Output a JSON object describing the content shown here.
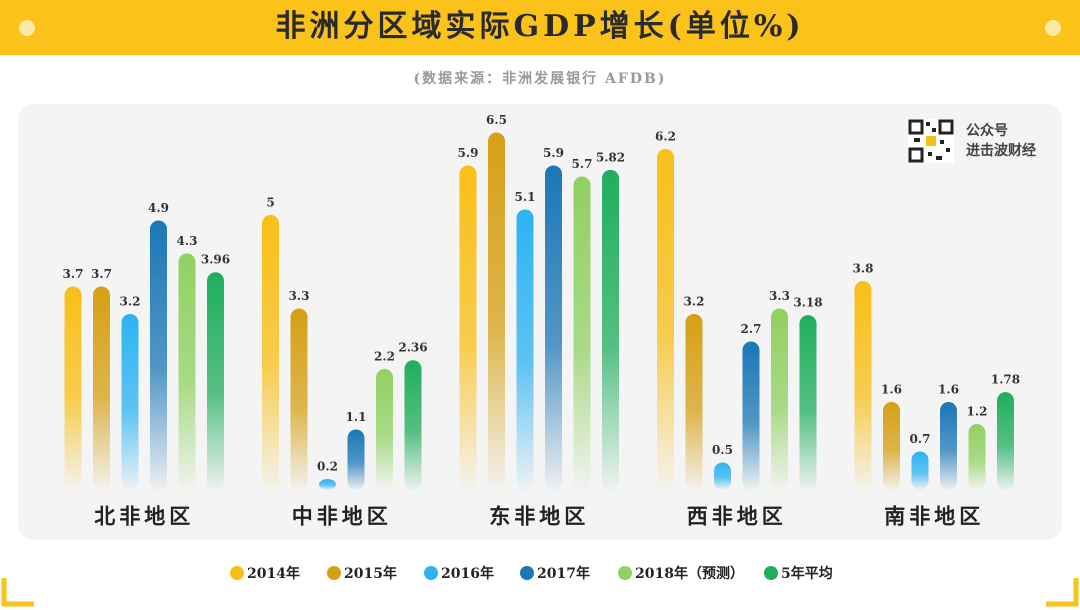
{
  "chart_data": {
    "type": "bar",
    "title": "非洲分区域实际GDP增长(单位%)",
    "subtitle": "(数据来源：非洲发展银行 AFDB)",
    "categories": [
      "北非地区",
      "中非地区",
      "东非地区",
      "西非地区",
      "南非地区"
    ],
    "series": [
      {
        "name": "2014年",
        "color": "#f8bf17",
        "values": [
          3.7,
          5,
          5.9,
          6.2,
          3.8
        ]
      },
      {
        "name": "2015年",
        "color": "#d6a015",
        "values": [
          3.7,
          3.3,
          6.5,
          3.2,
          1.6
        ]
      },
      {
        "name": "2016年",
        "color": "#2cb3f2",
        "values": [
          3.2,
          0.2,
          5.1,
          0.5,
          0.7
        ]
      },
      {
        "name": "2017年",
        "color": "#1b77b6",
        "values": [
          4.9,
          1.1,
          5.9,
          2.7,
          1.6
        ]
      },
      {
        "name": "2018年（预测）",
        "color": "#90d162",
        "values": [
          4.3,
          2.2,
          5.7,
          3.3,
          1.2
        ]
      },
      {
        "name": "5年平均",
        "color": "#1fae5d",
        "values": [
          3.96,
          2.36,
          5.82,
          3.18,
          1.78
        ]
      }
    ],
    "watermark": [
      "公众号",
      "进击波财经"
    ]
  }
}
